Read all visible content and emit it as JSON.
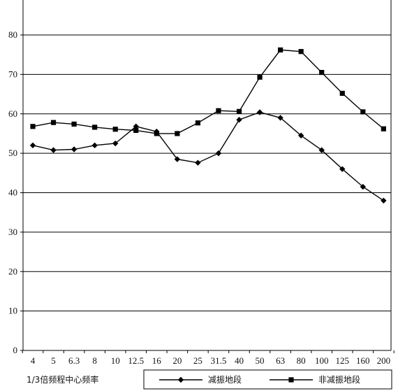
{
  "chart_data": {
    "type": "line",
    "xlabel": "1/3倍频程中心频率",
    "ylabel": "",
    "title": "",
    "categories": [
      "4",
      "5",
      "6.3",
      "8",
      "10",
      "12.5",
      "16",
      "20",
      "25",
      "31.5",
      "40",
      "50",
      "63",
      "80",
      "100",
      "125",
      "160",
      "200"
    ],
    "ylim": [
      0,
      90
    ],
    "yticks": [
      0,
      10,
      20,
      30,
      40,
      50,
      60,
      70,
      80
    ],
    "grid": true,
    "legend": "bottom-right",
    "series": [
      {
        "name": "减振地段",
        "marker": "diamond",
        "color": "#000000",
        "values": [
          52.0,
          50.8,
          51.0,
          52.0,
          52.5,
          56.8,
          55.5,
          48.5,
          47.6,
          50.0,
          58.5,
          60.4,
          59.0,
          54.5,
          50.8,
          46.0,
          41.5,
          38.0
        ]
      },
      {
        "name": "非减振地段",
        "marker": "square",
        "color": "#000000",
        "values": [
          56.8,
          57.8,
          57.4,
          56.6,
          56.1,
          55.8,
          55.0,
          55.0,
          57.7,
          60.8,
          60.6,
          69.3,
          76.2,
          75.8,
          70.5,
          65.2,
          60.5,
          56.2
        ]
      }
    ]
  }
}
